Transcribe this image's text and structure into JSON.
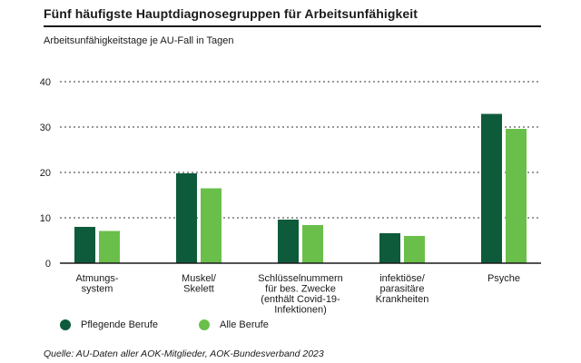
{
  "header": {
    "title": "Fünf häufigste Hauptdiagnosegruppen für Arbeitsunfähigkeit",
    "subtitle": "Arbeitsunfähigkeitstage je AU-Fall in Tagen"
  },
  "footer": {
    "source": "Quelle: AU-Daten aller AOK-Mitglieder, AOK-Bundesverband 2023"
  },
  "colors": {
    "series_dark": "#0e5b3b",
    "series_light": "#6abf4b",
    "gridline": "#333333",
    "axis": "#1a1a1a"
  },
  "chart_data": {
    "type": "bar",
    "title": "Fünf häufigste Hauptdiagnosegruppen für Arbeitsunfähigkeit",
    "ylabel": "Arbeitsunfähigkeitstage je AU-Fall in Tagen",
    "xlabel": "",
    "ylim": [
      0,
      40
    ],
    "yticks": [
      0,
      10,
      20,
      30,
      40
    ],
    "grid": true,
    "legend_position": "bottom-left",
    "categories": [
      [
        "Atmungs-",
        "system"
      ],
      [
        "Muskel/",
        "Skelett"
      ],
      [
        "Schlüsselnummern",
        "für bes. Zwecke",
        "(enthält Covid-19-",
        "Infektionen)"
      ],
      [
        "infektiöse/",
        "parasitäre",
        "Krankheiten"
      ],
      [
        "Psyche"
      ]
    ],
    "series": [
      {
        "name": "Pflegende Berufe",
        "color": "#0e5b3b",
        "values": [
          8.0,
          19.8,
          9.6,
          6.6,
          32.9
        ]
      },
      {
        "name": "Alle Berufe",
        "color": "#6abf4b",
        "values": [
          7.1,
          16.5,
          8.4,
          6.0,
          29.6
        ]
      }
    ]
  }
}
